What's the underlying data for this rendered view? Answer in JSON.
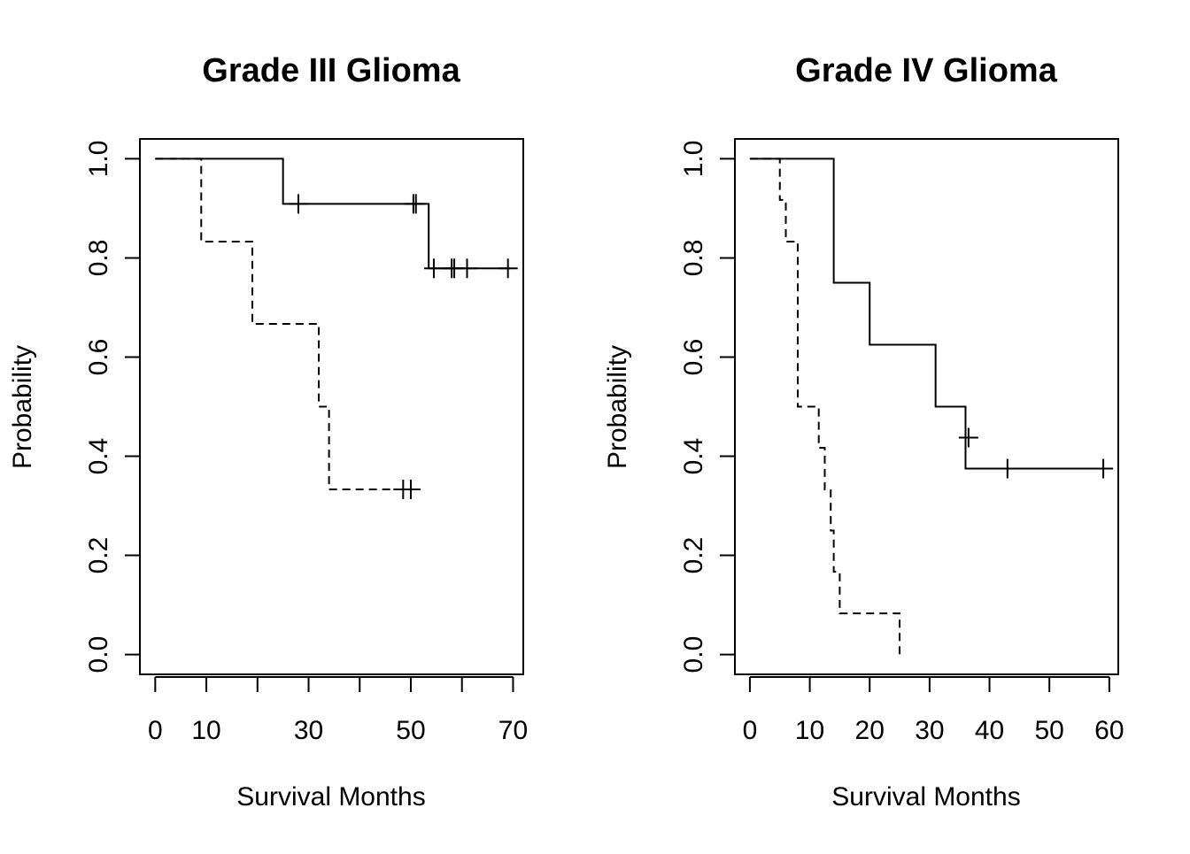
{
  "chart_data": [
    {
      "type": "line",
      "subtype": "step",
      "title": "Grade III Glioma",
      "xlabel": "Survival Months",
      "ylabel": "Probability",
      "xlim": [
        -3,
        72
      ],
      "ylim": [
        -0.04,
        1.04
      ],
      "x_ticks": [
        0,
        10,
        20,
        30,
        40,
        50,
        60,
        70
      ],
      "x_tick_labels": [
        "0",
        "10",
        "",
        "30",
        "",
        "50",
        "",
        "70"
      ],
      "y_ticks": [
        0.0,
        0.2,
        0.4,
        0.6,
        0.8,
        1.0
      ],
      "y_tick_labels": [
        "0.0",
        "0.2",
        "0.4",
        "0.6",
        "0.8",
        "1.0"
      ],
      "grid": false,
      "legend": "none",
      "series": [
        {
          "line_style": "solid",
          "x": [
            0,
            25,
            53.5,
            69.5
          ],
          "y": [
            1.0,
            0.909,
            0.779,
            0.779
          ],
          "censored_x": [
            28,
            50.5,
            51,
            54.5,
            58,
            58.5,
            61,
            69
          ],
          "censored_y": [
            0.909,
            0.909,
            0.909,
            0.779,
            0.779,
            0.779,
            0.779,
            0.779
          ]
        },
        {
          "line_style": "dashed",
          "x": [
            0,
            9,
            19,
            32,
            34,
            50.5
          ],
          "y": [
            1.0,
            0.833,
            0.667,
            0.5,
            0.333,
            0.333
          ],
          "censored_x": [
            48.5,
            50
          ],
          "censored_y": [
            0.333,
            0.333
          ]
        }
      ]
    },
    {
      "type": "line",
      "subtype": "step",
      "title": "Grade IV Glioma",
      "xlabel": "Survival Months",
      "ylabel": "Probability",
      "xlim": [
        -2.5,
        61.5
      ],
      "ylim": [
        -0.04,
        1.04
      ],
      "x_ticks": [
        0,
        10,
        20,
        30,
        40,
        50,
        60
      ],
      "x_tick_labels": [
        "0",
        "10",
        "20",
        "30",
        "40",
        "50",
        "60"
      ],
      "y_ticks": [
        0.0,
        0.2,
        0.4,
        0.6,
        0.8,
        1.0
      ],
      "y_tick_labels": [
        "0.0",
        "0.2",
        "0.4",
        "0.6",
        "0.8",
        "1.0"
      ],
      "grid": false,
      "legend": "none",
      "series": [
        {
          "line_style": "solid",
          "x": [
            0,
            14,
            20,
            31,
            36,
            60
          ],
          "y": [
            1.0,
            0.75,
            0.625,
            0.5,
            0.375,
            0.375
          ],
          "censored_x": [
            36.5,
            43,
            59
          ],
          "censored_y": [
            0.4375,
            0.375,
            0.375
          ]
        },
        {
          "line_style": "dashed",
          "x": [
            0,
            5,
            5.5,
            6,
            8,
            10.5,
            11.5,
            12.5,
            13.5,
            14,
            15,
            25,
            25
          ],
          "y": [
            1.0,
            0.917,
            0.917,
            0.833,
            0.5,
            0.5,
            0.417,
            0.333,
            0.25,
            0.167,
            0.083,
            0.083,
            0.0
          ],
          "censored_x": [],
          "censored_y": []
        }
      ]
    }
  ]
}
